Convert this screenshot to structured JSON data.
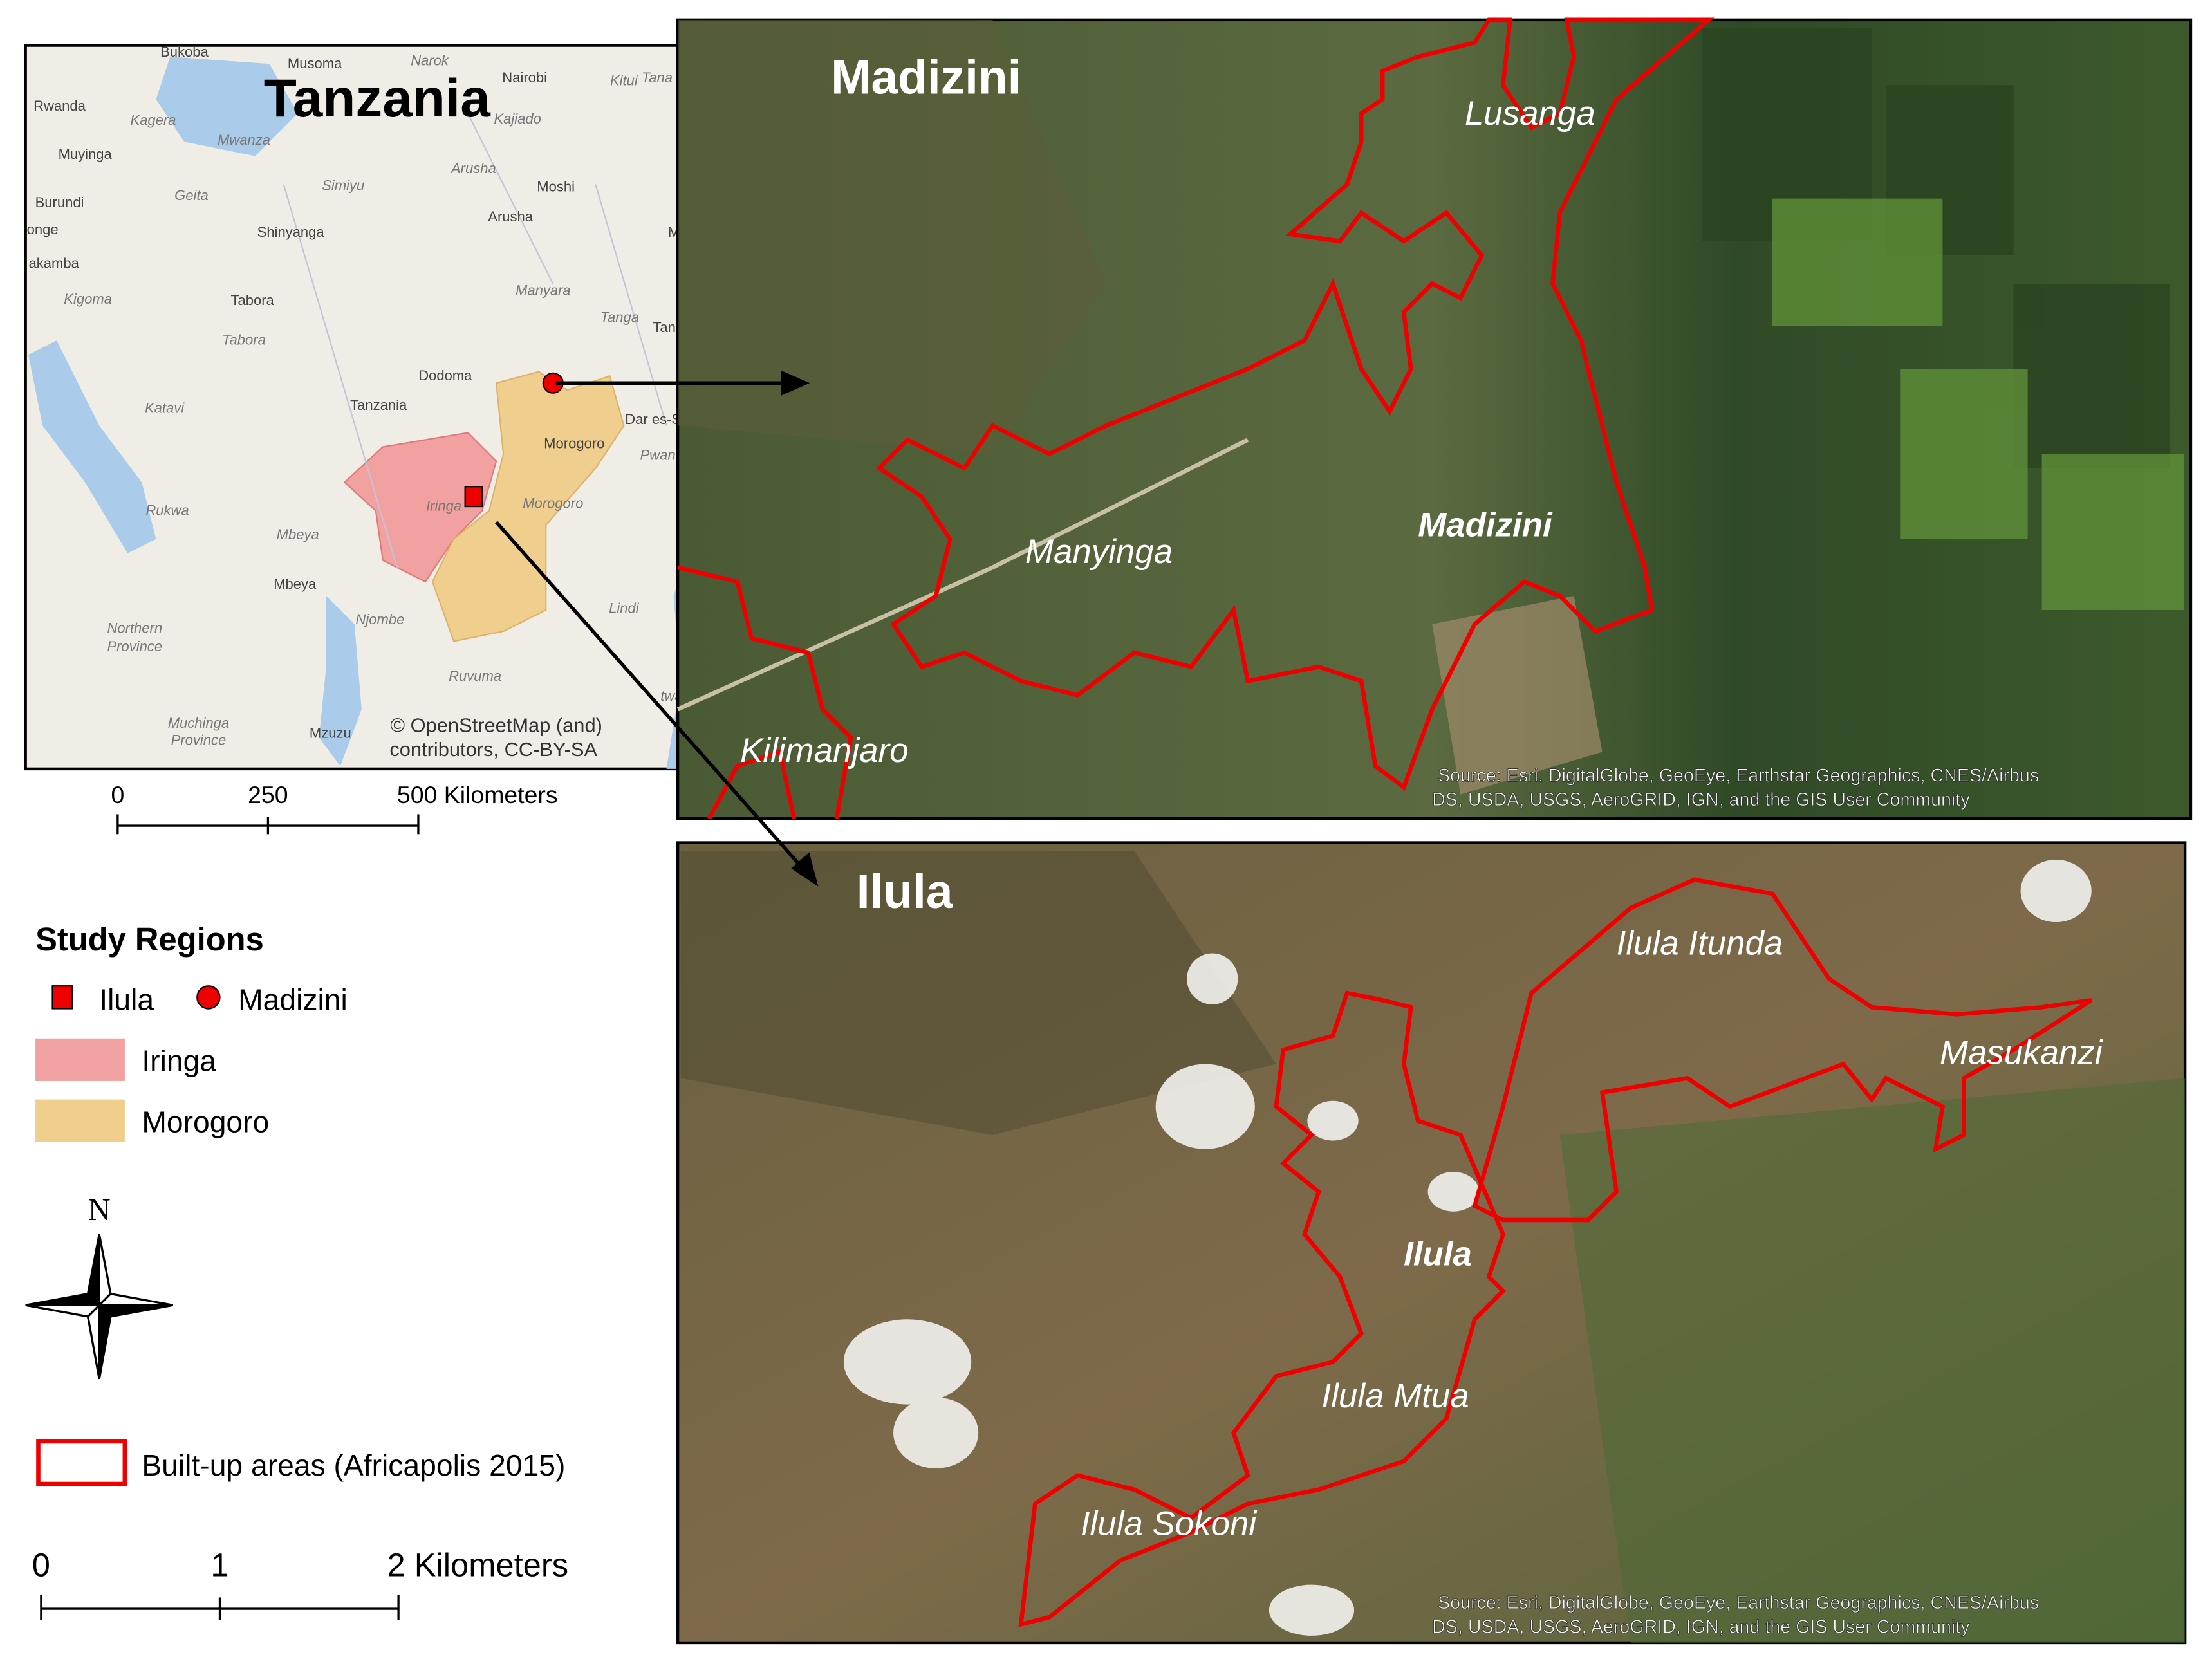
{
  "inset": {
    "title": "Tanzania",
    "places": [
      "Bukoba",
      "Musoma",
      "Narok",
      "Nairobi",
      "Kitui",
      "Tana Riv",
      "Rwanda",
      "Kagera",
      "Mwanza",
      "Kajiado",
      "Muyinga",
      "Simiyu",
      "Arusha",
      "Moshi",
      "Burundi",
      "Geita",
      "Arusha",
      "onge",
      "Shinyanga",
      "Momb",
      "akamba",
      "Manyara",
      "Kigoma",
      "Tabora",
      "Tanga",
      "Tanga",
      "Tabora",
      "Dodoma",
      "Dar es-Salaa",
      "Katavi",
      "Tanzania",
      "Morogoro",
      "Pwani",
      "Iringa",
      "Morogoro",
      "Rukwa",
      "Mbeya",
      "Mbeya",
      "Lindi",
      "Njombe",
      "Northern",
      "Province",
      "Ruvuma",
      "twara",
      "Muchinga",
      "Province",
      "Mzuzu"
    ],
    "attribution": [
      "© OpenStreetMap (and)",
      "contributors, CC-BY-SA"
    ],
    "scale": [
      "0",
      "250",
      "500 Kilometers"
    ]
  },
  "legend": {
    "title": "Study Regions",
    "items": [
      "Ilula",
      "Madizini",
      "Iringa",
      "Morogoro"
    ],
    "north": "N",
    "built_up": "Built-up areas (Africapolis 2015)",
    "scale": [
      "0",
      "1",
      "2 Kilometers"
    ]
  },
  "panels": [
    {
      "title": "Madizini",
      "labels": [
        "Lusanga",
        "Manyinga",
        "Madizini",
        "Kilimanjaro"
      ],
      "source": [
        "Source: Esri, DigitalGlobe, GeoEye, Earthstar Geographics, CNES/Airbus",
        "DS, USDA, USGS, AeroGRID, IGN, and the GIS User Community"
      ]
    },
    {
      "title": "Ilula",
      "labels": [
        "Ilula Itunda",
        "Masukanzi",
        "Ilula",
        "Ilula Mtua",
        "Ilula Sokoni"
      ],
      "source": [
        "Source: Esri, DigitalGlobe, GeoEye, Earthstar Geographics, CNES/Airbus",
        "DS, USDA, USGS, AeroGRID, IGN, and the GIS User Community"
      ]
    }
  ]
}
